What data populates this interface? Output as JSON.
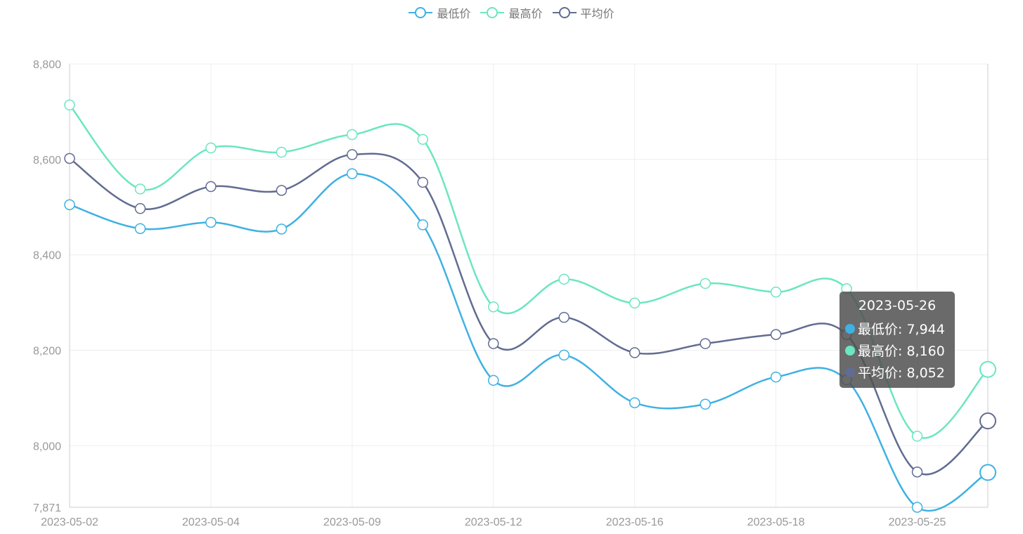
{
  "legend": {
    "items": [
      {
        "label": "最低价",
        "color": "#3fb1e3"
      },
      {
        "label": "最高价",
        "color": "#6be6c1"
      },
      {
        "label": "平均价",
        "color": "#626c91"
      }
    ]
  },
  "tooltip": {
    "title": "2023-05-26",
    "rows": [
      {
        "label": "最低价: 7,944",
        "color": "#3fb1e3"
      },
      {
        "label": "最高价: 8,160",
        "color": "#6be6c1"
      },
      {
        "label": "平均价: 8,052",
        "color": "#626c91"
      }
    ]
  },
  "chart_data": {
    "type": "line",
    "smooth": true,
    "x_tick_labels": [
      "2023-05-02",
      "2023-05-04",
      "2023-05-09",
      "2023-05-12",
      "2023-05-16",
      "2023-05-18",
      "2023-05-25"
    ],
    "y_ticks": [
      7871,
      8000,
      8200,
      8400,
      8600,
      8800
    ],
    "y_tick_labels": [
      "7,871",
      "8,000",
      "8,200",
      "8,400",
      "8,600",
      "8,800"
    ],
    "ylim": [
      7871,
      8800
    ],
    "grid": true,
    "legend_position": "top-center",
    "series": [
      {
        "name": "最低价",
        "color": "#3fb1e3",
        "values": [
          8505,
          8455,
          8468,
          8454,
          8570,
          8463,
          8137,
          8190,
          8090,
          8087,
          8144,
          8138,
          7871,
          7944
        ]
      },
      {
        "name": "最高价",
        "color": "#6be6c1",
        "values": [
          8714,
          8538,
          8624,
          8615,
          8652,
          8642,
          8291,
          8349,
          8299,
          8340,
          8322,
          8329,
          8020,
          8160
        ]
      },
      {
        "name": "平均价",
        "color": "#626c91",
        "values": [
          8602,
          8497,
          8543,
          8535,
          8610,
          8552,
          8214,
          8269,
          8195,
          8214,
          8233,
          8233,
          7945,
          8052
        ]
      }
    ],
    "highlight_index": 13
  }
}
